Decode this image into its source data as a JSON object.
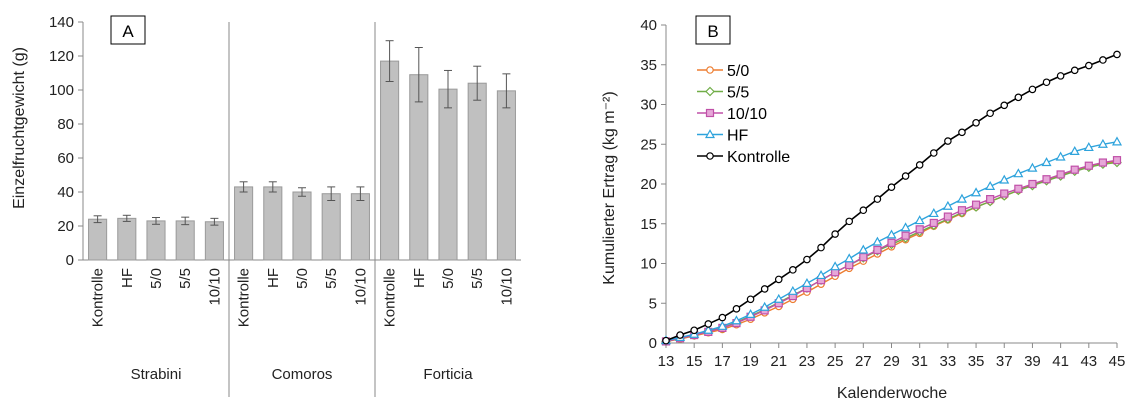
{
  "chart_data": [
    {
      "type": "bar",
      "panel_label": "A",
      "ylabel": "Einzelfruchtgewicht (g)",
      "ylim": [
        0,
        140
      ],
      "yticks": [
        0,
        20,
        40,
        60,
        80,
        100,
        120,
        140
      ],
      "bar_color": "#c0c0c0",
      "bar_edge_color": "#9a9a9a",
      "grid": false,
      "groups": [
        {
          "name": "Strabini",
          "categories": [
            "Kontrolle",
            "HF",
            "5/0",
            "5/5",
            "10/10"
          ],
          "values": [
            24,
            24.5,
            23,
            23,
            22.5
          ],
          "errors": [
            2,
            1.8,
            2,
            2.2,
            2
          ]
        },
        {
          "name": "Comoros",
          "categories": [
            "Kontrolle",
            "HF",
            "5/0",
            "5/5",
            "10/10"
          ],
          "values": [
            43,
            43,
            40,
            39,
            39
          ],
          "errors": [
            3,
            3,
            2.5,
            4,
            4
          ]
        },
        {
          "name": "Forticia",
          "categories": [
            "Kontrolle",
            "HF",
            "5/0",
            "5/5",
            "10/10"
          ],
          "values": [
            117,
            109,
            100.5,
            104,
            99.5
          ],
          "errors": [
            12,
            16,
            11,
            10,
            10
          ]
        }
      ]
    },
    {
      "type": "line",
      "panel_label": "B",
      "xlabel": "Kalenderwoche",
      "ylabel": "Kumulierter Ertrag (kg m⁻²)",
      "xlim": [
        13,
        45
      ],
      "ylim": [
        0,
        40
      ],
      "xticks": [
        13,
        15,
        17,
        19,
        21,
        23,
        25,
        27,
        29,
        31,
        33,
        35,
        37,
        39,
        41,
        43,
        45
      ],
      "yticks": [
        0,
        5,
        10,
        15,
        20,
        25,
        30,
        35,
        40
      ],
      "grid": false,
      "legend_position": "top-left",
      "x": [
        13,
        14,
        15,
        16,
        17,
        18,
        19,
        20,
        21,
        22,
        23,
        24,
        25,
        26,
        27,
        28,
        29,
        30,
        31,
        32,
        33,
        34,
        35,
        36,
        37,
        38,
        39,
        40,
        41,
        42,
        43,
        44,
        45
      ],
      "series": [
        {
          "name": "5/0",
          "color": "#ed7d31",
          "marker": "circle",
          "values": [
            0.2,
            0.5,
            0.9,
            1.3,
            1.7,
            2.3,
            3.0,
            3.8,
            4.6,
            5.5,
            6.4,
            7.4,
            8.4,
            9.4,
            10.3,
            11.2,
            12.1,
            13.0,
            13.8,
            14.7,
            15.5,
            16.3,
            17.1,
            17.8,
            18.5,
            19.2,
            19.9,
            20.5,
            21.1,
            21.7,
            22.2,
            22.6,
            22.9
          ]
        },
        {
          "name": "5/5",
          "color": "#70ad47",
          "marker": "diamond",
          "values": [
            0.2,
            0.6,
            1.0,
            1.5,
            1.9,
            2.6,
            3.4,
            4.2,
            5.1,
            6.0,
            6.9,
            7.9,
            8.9,
            9.8,
            10.7,
            11.6,
            12.4,
            13.2,
            14.0,
            14.8,
            15.6,
            16.4,
            17.1,
            17.8,
            18.5,
            19.2,
            19.8,
            20.4,
            21.0,
            21.6,
            22.1,
            22.5,
            22.7
          ]
        },
        {
          "name": "10/10",
          "color": "#c050a8",
          "marker": "square",
          "values": [
            0.2,
            0.6,
            1.0,
            1.4,
            1.9,
            2.5,
            3.3,
            4.1,
            5.0,
            5.9,
            6.9,
            7.9,
            8.9,
            9.8,
            10.8,
            11.7,
            12.6,
            13.5,
            14.3,
            15.1,
            15.9,
            16.7,
            17.4,
            18.1,
            18.8,
            19.4,
            20.0,
            20.6,
            21.2,
            21.8,
            22.3,
            22.7,
            23.0
          ]
        },
        {
          "name": "HF",
          "color": "#2ea3dc",
          "marker": "triangle",
          "values": [
            0.3,
            0.7,
            1.1,
            1.6,
            2.1,
            2.8,
            3.6,
            4.5,
            5.5,
            6.5,
            7.5,
            8.5,
            9.6,
            10.6,
            11.7,
            12.7,
            13.6,
            14.5,
            15.4,
            16.3,
            17.2,
            18.1,
            18.9,
            19.7,
            20.5,
            21.3,
            22.0,
            22.7,
            23.4,
            24.1,
            24.6,
            25.0,
            25.3
          ]
        },
        {
          "name": "Kontrolle",
          "color": "#000000",
          "marker": "circle",
          "values": [
            0.3,
            1.0,
            1.6,
            2.4,
            3.2,
            4.3,
            5.5,
            6.8,
            8.0,
            9.2,
            10.5,
            12.0,
            13.7,
            15.3,
            16.7,
            18.1,
            19.6,
            21.0,
            22.4,
            23.9,
            25.4,
            26.5,
            27.7,
            28.9,
            29.9,
            30.9,
            31.9,
            32.8,
            33.6,
            34.3,
            34.9,
            35.6,
            36.3
          ]
        }
      ]
    }
  ]
}
